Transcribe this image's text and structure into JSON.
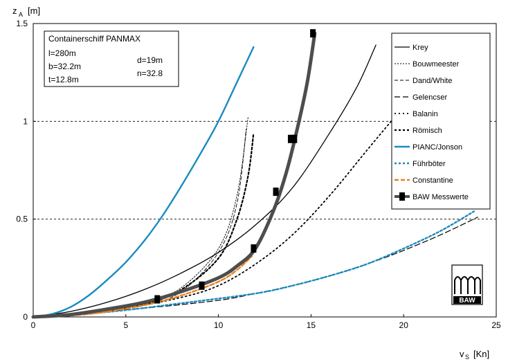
{
  "chart_data": {
    "type": "line",
    "ylabel_main": "z",
    "ylabel_sub": "A",
    "ylabel_unit": "[m]",
    "xlabel_main": "v",
    "xlabel_sub": "S",
    "xlabel_unit": "[Kn]",
    "xlim": [
      0,
      25
    ],
    "ylim": [
      0,
      1.5
    ],
    "x_ticks": [
      "0",
      "5",
      "10",
      "15",
      "20",
      "25"
    ],
    "y_ticks": [
      "0",
      "0.5",
      "1",
      "1.5"
    ],
    "grid": "dashed horizontal at 0.5, 1, 1.5",
    "legend_position": "top-right",
    "info_box": {
      "title": "Containerschiff PANMAX",
      "l": "l=280m",
      "b": "b=32.2m",
      "t": "t=12.8m",
      "d": "d=19m",
      "n": "n=32.8"
    },
    "logo_text": "BAW",
    "colors": {
      "black": "#000000",
      "blue": "#1a8bbf",
      "orange": "#e8821e",
      "gray": "#4d4d4d"
    },
    "series": [
      {
        "name": "Krey",
        "style": "solid-thin",
        "color": "#000000",
        "x": [
          0,
          2,
          4,
          6,
          8,
          10,
          12,
          14,
          16,
          17.5,
          18.5
        ],
        "y": [
          0,
          0.028,
          0.075,
          0.14,
          0.225,
          0.33,
          0.47,
          0.66,
          0.94,
          1.18,
          1.39
        ]
      },
      {
        "name": "Bouwmeester",
        "style": "dotted-thin",
        "color": "#000000",
        "x": [
          0,
          3,
          6,
          8,
          10,
          11,
          11.6
        ],
        "y": [
          0,
          0.02,
          0.075,
          0.15,
          0.35,
          0.62,
          1.02
        ]
      },
      {
        "name": "Dand/White",
        "style": "dashed-thin",
        "color": "#000000",
        "x": [
          0,
          3,
          6,
          8,
          10,
          11,
          11.5
        ],
        "y": [
          0,
          0.015,
          0.06,
          0.13,
          0.33,
          0.58,
          0.96
        ]
      },
      {
        "name": "Gelencser",
        "style": "dashed-long",
        "color": "#000000",
        "x": [
          0,
          6,
          10,
          12,
          14,
          16,
          18,
          20,
          22,
          24
        ],
        "y": [
          0,
          0.045,
          0.085,
          0.12,
          0.16,
          0.21,
          0.27,
          0.34,
          0.42,
          0.51
        ]
      },
      {
        "name": "Balanin",
        "style": "dotted",
        "color": "#000000",
        "x": [
          0,
          2,
          5,
          8,
          10,
          12,
          14,
          16,
          18,
          19.5
        ],
        "y": [
          0,
          0.012,
          0.045,
          0.1,
          0.16,
          0.27,
          0.42,
          0.62,
          0.85,
          1.02
        ]
      },
      {
        "name": "Römisch",
        "style": "dash-bold",
        "color": "#000000",
        "x": [
          0,
          3,
          6,
          8,
          10,
          11,
          11.6,
          11.9
        ],
        "y": [
          0,
          0.018,
          0.065,
          0.14,
          0.3,
          0.5,
          0.72,
          0.94
        ]
      },
      {
        "name": "PIANC/Jonson",
        "style": "solid",
        "color": "#1a8bbf",
        "x": [
          0,
          1,
          2,
          3,
          4,
          5,
          6,
          7,
          8,
          9,
          10,
          11,
          11.9
        ],
        "y": [
          0,
          0.015,
          0.05,
          0.11,
          0.19,
          0.28,
          0.39,
          0.52,
          0.67,
          0.83,
          1.0,
          1.2,
          1.38
        ]
      },
      {
        "name": "Führböter",
        "style": "dotted-thick",
        "color": "#1a8bbf",
        "x": [
          0,
          4,
          8,
          12,
          14,
          16,
          18,
          20,
          22,
          23.8
        ],
        "y": [
          0,
          0.025,
          0.07,
          0.12,
          0.16,
          0.21,
          0.27,
          0.35,
          0.44,
          0.54
        ]
      },
      {
        "name": "Constantine",
        "style": "dash-thick",
        "color": "#e8821e",
        "x": [
          0,
          3,
          6,
          8,
          10,
          11,
          11.8
        ],
        "y": [
          0,
          0.015,
          0.06,
          0.11,
          0.18,
          0.24,
          0.31
        ]
      },
      {
        "name": "BAW Messwerte",
        "style": "solid-heavy",
        "color": "#4d4d4d",
        "x": [
          0,
          2,
          4,
          6,
          8,
          10,
          11,
          12,
          13,
          13.7,
          14.3,
          14.8,
          15.2
        ],
        "y": [
          0,
          0.012,
          0.04,
          0.075,
          0.13,
          0.2,
          0.26,
          0.35,
          0.55,
          0.75,
          0.98,
          1.2,
          1.45
        ],
        "markers_x": [
          6.7,
          9.1,
          11.9,
          13.1,
          13.9,
          14.1,
          15.1
        ],
        "markers_y": [
          0.09,
          0.16,
          0.35,
          0.64,
          0.91,
          0.91,
          1.45
        ]
      }
    ]
  }
}
